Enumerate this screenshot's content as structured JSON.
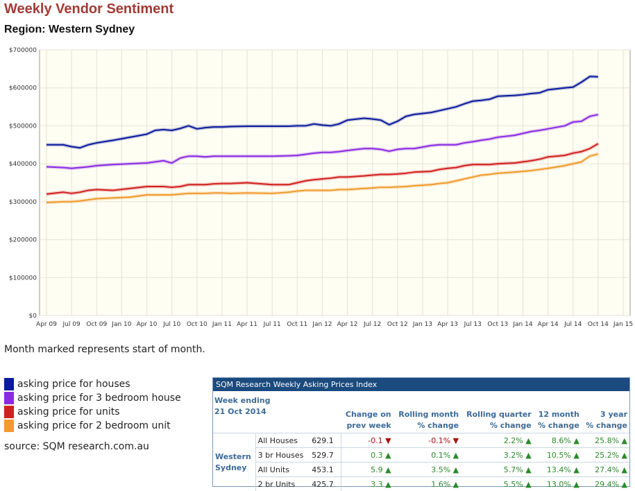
{
  "header": {
    "title": "Weekly Vendor Sentiment",
    "subtitle": "Region: Western Sydney"
  },
  "chart_data": {
    "type": "line",
    "xlim": [
      "2009-04",
      "2015-01"
    ],
    "ylim": [
      0,
      700000
    ],
    "y_ticks": [
      "$0",
      "$100000",
      "$200000",
      "$300000",
      "$400000",
      "$500000",
      "$600000",
      "$700000"
    ],
    "x_ticks": [
      "Apr 09",
      "Jul 09",
      "Oct 09",
      "Jan 10",
      "Apr 10",
      "Jul 10",
      "Oct 10",
      "Jan 11",
      "Apr 11",
      "Jul 11",
      "Oct 11",
      "Jan 12",
      "Apr 12",
      "Jul 12",
      "Oct 12",
      "Jan 13",
      "Apr 13",
      "Jul 13",
      "Oct 13",
      "Jan 14",
      "Apr 14",
      "Jul 14",
      "Oct 14",
      "Jan 15"
    ],
    "grid": true,
    "x": [
      "2009-04",
      "2009-06",
      "2009-07",
      "2009-08",
      "2009-09",
      "2009-10",
      "2009-12",
      "2010-02",
      "2010-04",
      "2010-05",
      "2010-06",
      "2010-07",
      "2010-08",
      "2010-09",
      "2010-10",
      "2010-11",
      "2010-12",
      "2011-01",
      "2011-02",
      "2011-04",
      "2011-07",
      "2011-09",
      "2011-10",
      "2011-11",
      "2011-12",
      "2012-01",
      "2012-02",
      "2012-03",
      "2012-04",
      "2012-06",
      "2012-07",
      "2012-08",
      "2012-09",
      "2012-10",
      "2012-11",
      "2012-12",
      "2013-02",
      "2013-03",
      "2013-04",
      "2013-05",
      "2013-06",
      "2013-07",
      "2013-08",
      "2013-09",
      "2013-10",
      "2013-12",
      "2014-01",
      "2014-02",
      "2014-03",
      "2014-04",
      "2014-06",
      "2014-07",
      "2014-08",
      "2014-09",
      "2014-10"
    ],
    "series": [
      {
        "name": "asking price for houses",
        "color": "#0a1a9c",
        "values": [
          450000,
          450000,
          445000,
          442000,
          450000,
          455000,
          462000,
          470000,
          478000,
          488000,
          490000,
          488000,
          493000,
          500000,
          492000,
          495000,
          497000,
          497000,
          498000,
          499000,
          499000,
          499000,
          500000,
          500000,
          505000,
          502000,
          500000,
          505000,
          515000,
          520000,
          518000,
          515000,
          503000,
          512000,
          525000,
          530000,
          535000,
          540000,
          545000,
          550000,
          558000,
          565000,
          567000,
          570000,
          578000,
          580000,
          582000,
          585000,
          587000,
          595000,
          600000,
          602000,
          615000,
          630000,
          629100
        ]
      },
      {
        "name": "asking price for 3 bedroom house",
        "color": "#8a2be2",
        "values": [
          392000,
          390000,
          388000,
          390000,
          392000,
          395000,
          398000,
          400000,
          402000,
          405000,
          408000,
          402000,
          415000,
          420000,
          420000,
          418000,
          420000,
          420000,
          420000,
          420000,
          420000,
          421000,
          422000,
          425000,
          428000,
          430000,
          430000,
          432000,
          435000,
          440000,
          440000,
          438000,
          433000,
          438000,
          440000,
          440000,
          448000,
          450000,
          450000,
          450000,
          455000,
          458000,
          462000,
          465000,
          470000,
          475000,
          480000,
          485000,
          488000,
          492000,
          500000,
          510000,
          512000,
          525000,
          529700
        ]
      },
      {
        "name": "asking price for units",
        "color": "#d02020",
        "values": [
          320000,
          325000,
          322000,
          325000,
          330000,
          332000,
          330000,
          335000,
          340000,
          340000,
          340000,
          338000,
          340000,
          345000,
          345000,
          345000,
          347000,
          348000,
          348000,
          350000,
          345000,
          345000,
          350000,
          355000,
          358000,
          360000,
          362000,
          365000,
          365000,
          368000,
          370000,
          372000,
          372000,
          373000,
          375000,
          378000,
          380000,
          385000,
          388000,
          390000,
          395000,
          398000,
          398000,
          398000,
          400000,
          402000,
          405000,
          408000,
          412000,
          418000,
          422000,
          428000,
          432000,
          440000,
          453100
        ]
      },
      {
        "name": "asking price for 2 bedroom unit",
        "color": "#f09a30",
        "values": [
          298000,
          300000,
          300000,
          302000,
          305000,
          308000,
          310000,
          312000,
          318000,
          318000,
          318000,
          318000,
          320000,
          322000,
          322000,
          322000,
          323000,
          323000,
          322000,
          323000,
          322000,
          325000,
          328000,
          330000,
          330000,
          330000,
          330000,
          332000,
          332000,
          335000,
          336000,
          338000,
          338000,
          339000,
          340000,
          342000,
          345000,
          348000,
          350000,
          355000,
          360000,
          365000,
          370000,
          372000,
          375000,
          378000,
          380000,
          382000,
          385000,
          388000,
          395000,
          400000,
          405000,
          420000,
          425700
        ]
      }
    ]
  },
  "note": "Month marked represents start of month.",
  "legend": [
    {
      "label": "asking price for houses",
      "color": "#0a1a9c"
    },
    {
      "label": "asking price for 3 bedroom house",
      "color": "#8a2be2"
    },
    {
      "label": "asking price for units",
      "color": "#d02020"
    },
    {
      "label": "asking price for 2 bedroom unit",
      "color": "#f09a30"
    }
  ],
  "source": "source: SQM research.com.au",
  "index_table": {
    "title": "SQM Research Weekly Asking Prices Index",
    "week_label": "Week ending",
    "week_date": "21 Oct 2014",
    "headers": [
      {
        "l1": "Change on",
        "l2": "prev week"
      },
      {
        "l1": "Rolling month",
        "l2": "% change"
      },
      {
        "l1": "Rolling quarter",
        "l2": "% change"
      },
      {
        "l1": "12 month",
        "l2": "% change"
      },
      {
        "l1": "3 year",
        "l2": "% change"
      }
    ],
    "region_line1": "Western",
    "region_line2": "Sydney",
    "rows": [
      {
        "name": "All Houses",
        "value": "629.1",
        "c1": "-0.1",
        "a1": "▼",
        "c2": "-0.1%",
        "a2": "▼",
        "c3": "2.2%",
        "a3": "▲",
        "c4": "8.6%",
        "a4": "▲",
        "c5": "25.8%",
        "a5": "▲"
      },
      {
        "name": "3 br Houses",
        "value": "529.7",
        "c1": "0.3",
        "a1": "▲",
        "c2": "0.1%",
        "a2": "▲",
        "c3": "3.2%",
        "a3": "▲",
        "c4": "10.5%",
        "a4": "▲",
        "c5": "25.2%",
        "a5": "▲"
      },
      {
        "name": "All Units",
        "value": "453.1",
        "c1": "5.9",
        "a1": "▲",
        "c2": "3.5%",
        "a2": "▲",
        "c3": "5.7%",
        "a3": "▲",
        "c4": "13.4%",
        "a4": "▲",
        "c5": "27.4%",
        "a5": "▲"
      },
      {
        "name": "2 br Units",
        "value": "425.7",
        "c1": "3.3",
        "a1": "▲",
        "c2": "1.6%",
        "a2": "▲",
        "c3": "5.5%",
        "a3": "▲",
        "c4": "13.0%",
        "a4": "▲",
        "c5": "29.4%",
        "a5": "▲"
      }
    ]
  }
}
